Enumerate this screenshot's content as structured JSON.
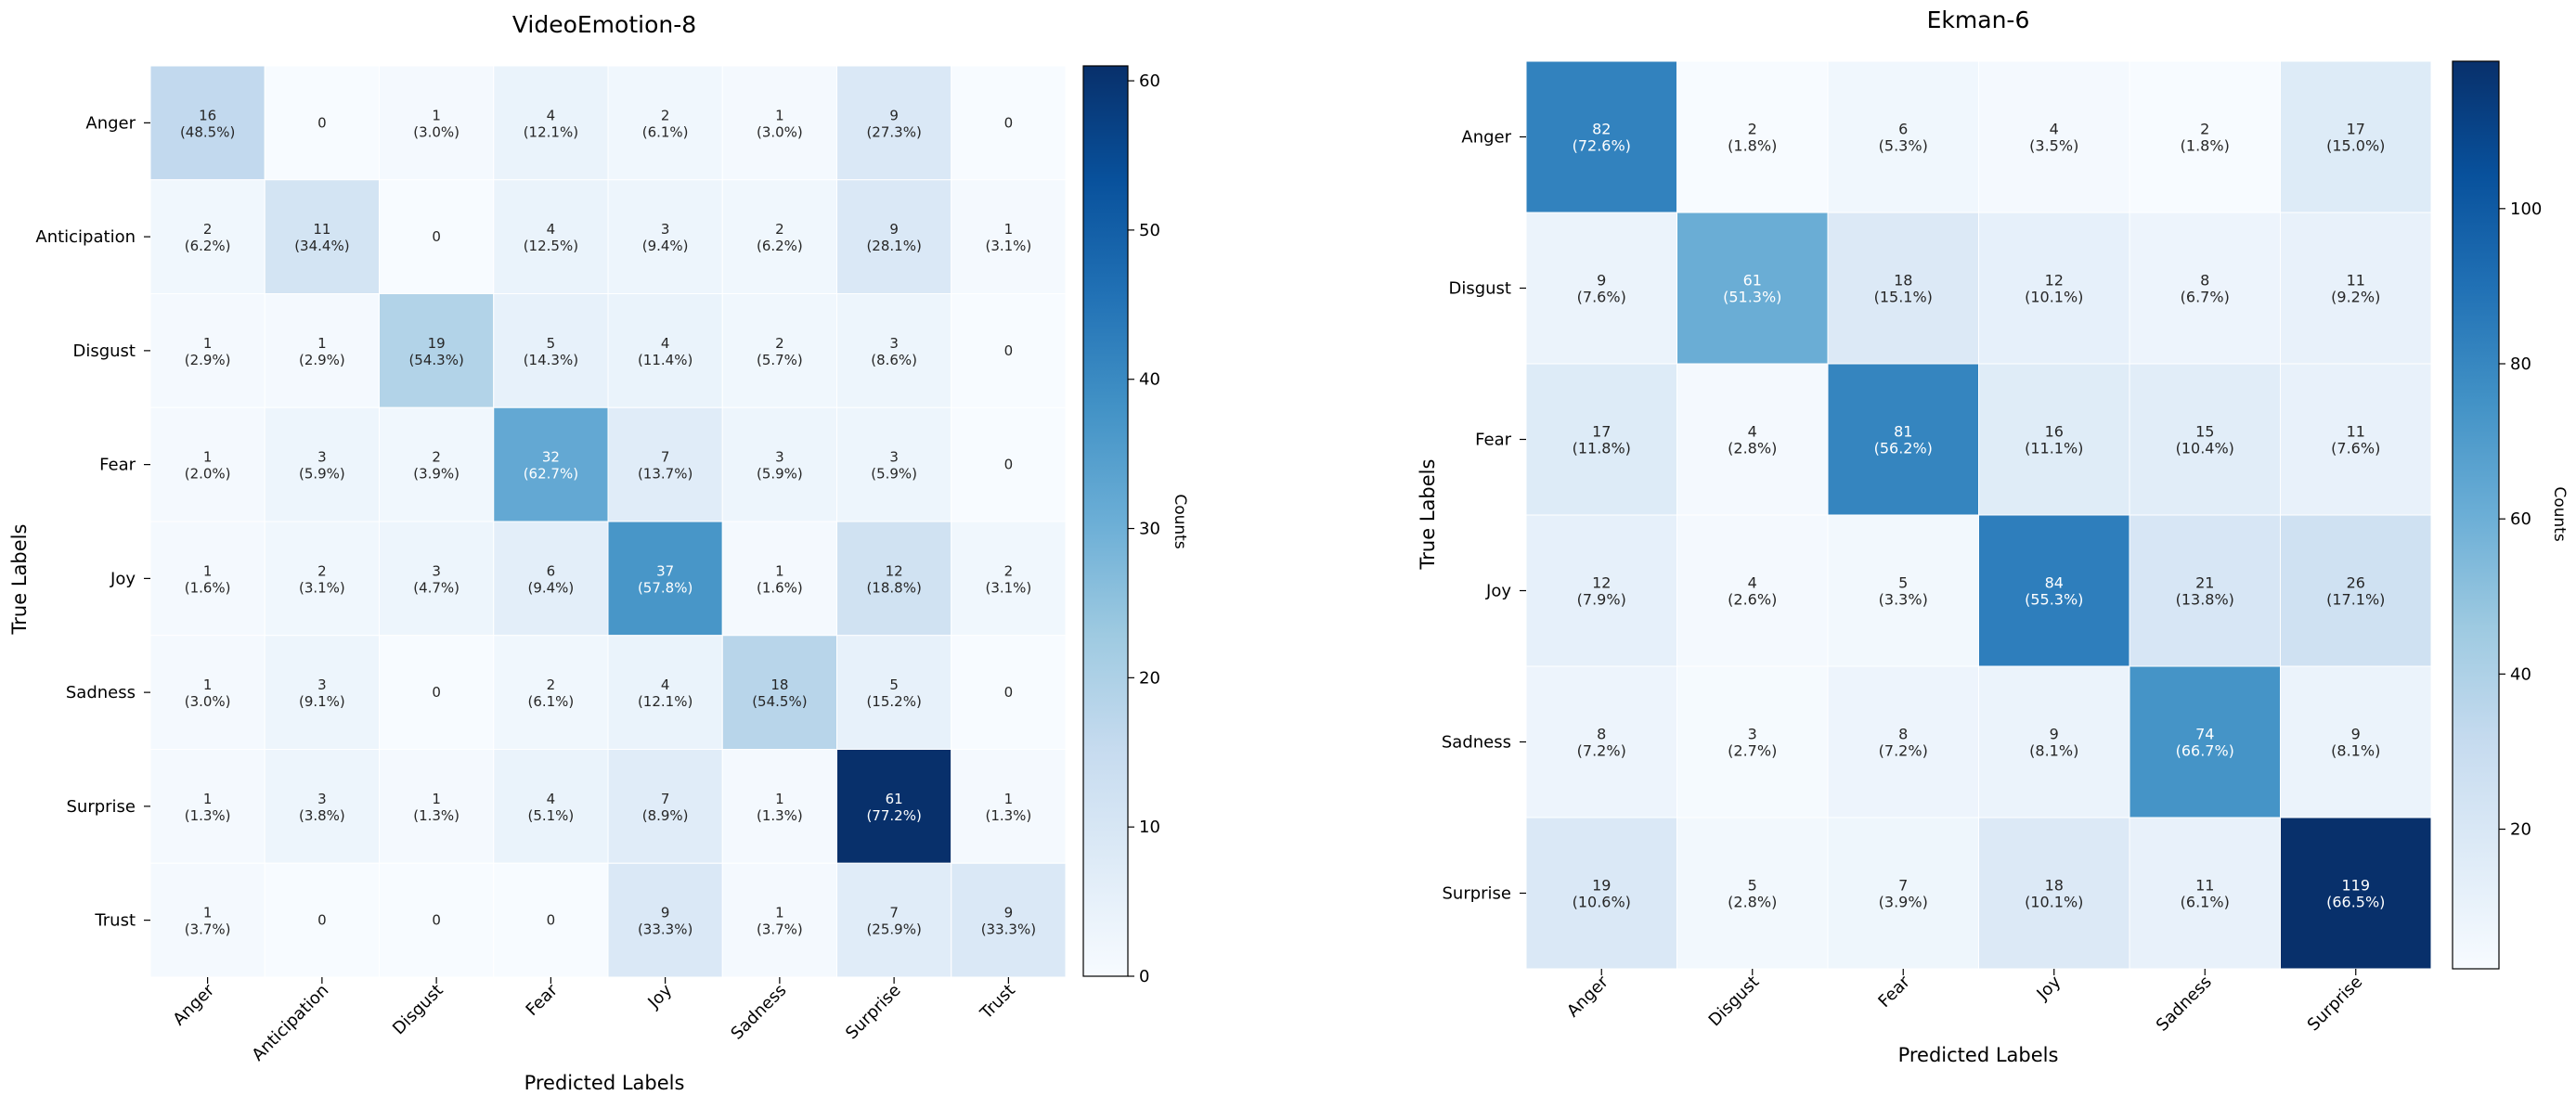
{
  "chart_data": [
    {
      "type": "heatmap",
      "title": "VideoEmotion-8",
      "xlabel": "Predicted Labels",
      "ylabel": "True Labels",
      "colorbar_label": "Counts",
      "colorbar_range": [
        0,
        61
      ],
      "colorbar_ticks": [
        0,
        10,
        20,
        30,
        40,
        50,
        60
      ],
      "colorbar_tick_labels": [
        "0",
        "10",
        "20",
        "30",
        "40",
        "50",
        "60"
      ],
      "colormap": [
        "#f7fbff",
        "#deebf7",
        "#c6dbef",
        "#9ecae1",
        "#6baed6",
        "#4292c6",
        "#2171b5",
        "#08519c",
        "#08306b"
      ],
      "row_labels": [
        "Anger",
        "Anticipation",
        "Disgust",
        "Fear",
        "Joy",
        "Sadness",
        "Surprise",
        "Trust"
      ],
      "col_labels": [
        "Anger",
        "Anticipation",
        "Disgust",
        "Fear",
        "Joy",
        "Sadness",
        "Surprise",
        "Trust"
      ],
      "values": [
        [
          16,
          0,
          1,
          4,
          2,
          1,
          9,
          0
        ],
        [
          2,
          11,
          0,
          4,
          3,
          2,
          9,
          1
        ],
        [
          1,
          1,
          19,
          5,
          4,
          2,
          3,
          0
        ],
        [
          1,
          3,
          2,
          32,
          7,
          3,
          3,
          0
        ],
        [
          1,
          2,
          3,
          6,
          37,
          1,
          12,
          2
        ],
        [
          1,
          3,
          0,
          2,
          4,
          18,
          5,
          0
        ],
        [
          1,
          3,
          1,
          4,
          7,
          1,
          61,
          1
        ],
        [
          1,
          0,
          0,
          0,
          9,
          1,
          7,
          9
        ]
      ],
      "percents": [
        [
          "48.5%",
          "",
          "3.0%",
          "12.1%",
          "6.1%",
          "3.0%",
          "27.3%",
          ""
        ],
        [
          "6.2%",
          "34.4%",
          "",
          "12.5%",
          "9.4%",
          "6.2%",
          "28.1%",
          "3.1%"
        ],
        [
          "2.9%",
          "2.9%",
          "54.3%",
          "14.3%",
          "11.4%",
          "5.7%",
          "8.6%",
          ""
        ],
        [
          "2.0%",
          "5.9%",
          "3.9%",
          "62.7%",
          "13.7%",
          "5.9%",
          "5.9%",
          ""
        ],
        [
          "1.6%",
          "3.1%",
          "4.7%",
          "9.4%",
          "57.8%",
          "1.6%",
          "18.8%",
          "3.1%"
        ],
        [
          "3.0%",
          "9.1%",
          "",
          "6.1%",
          "12.1%",
          "54.5%",
          "15.2%",
          ""
        ],
        [
          "1.3%",
          "3.8%",
          "1.3%",
          "5.1%",
          "8.9%",
          "1.3%",
          "77.2%",
          "1.3%"
        ],
        [
          "3.7%",
          "",
          "",
          "",
          "33.3%",
          "3.7%",
          "25.9%",
          "33.3%"
        ]
      ]
    },
    {
      "type": "heatmap",
      "title": "Ekman-6",
      "xlabel": "Predicted Labels",
      "ylabel": "True Labels",
      "colorbar_label": "Counts",
      "colorbar_range": [
        2,
        119
      ],
      "colorbar_ticks": [
        20,
        40,
        60,
        80,
        100
      ],
      "colorbar_tick_labels": [
        "20",
        "40",
        "60",
        "80",
        "100"
      ],
      "colormap": [
        "#f7fbff",
        "#deebf7",
        "#c6dbef",
        "#9ecae1",
        "#6baed6",
        "#4292c6",
        "#2171b5",
        "#08519c",
        "#08306b"
      ],
      "row_labels": [
        "Anger",
        "Disgust",
        "Fear",
        "Joy",
        "Sadness",
        "Surprise"
      ],
      "col_labels": [
        "Anger",
        "Disgust",
        "Fear",
        "Joy",
        "Sadness",
        "Surprise"
      ],
      "values": [
        [
          82,
          2,
          6,
          4,
          2,
          17
        ],
        [
          9,
          61,
          18,
          12,
          8,
          11
        ],
        [
          17,
          4,
          81,
          16,
          15,
          11
        ],
        [
          12,
          4,
          5,
          84,
          21,
          26
        ],
        [
          8,
          3,
          8,
          9,
          74,
          9
        ],
        [
          19,
          5,
          7,
          18,
          11,
          119
        ]
      ],
      "percents": [
        [
          "72.6%",
          "1.8%",
          "5.3%",
          "3.5%",
          "1.8%",
          "15.0%"
        ],
        [
          "7.6%",
          "51.3%",
          "15.1%",
          "10.1%",
          "6.7%",
          "9.2%"
        ],
        [
          "11.8%",
          "2.8%",
          "56.2%",
          "11.1%",
          "10.4%",
          "7.6%"
        ],
        [
          "7.9%",
          "2.6%",
          "3.3%",
          "55.3%",
          "13.8%",
          "17.1%"
        ],
        [
          "7.2%",
          "2.7%",
          "7.2%",
          "8.1%",
          "66.7%",
          "8.1%"
        ],
        [
          "10.6%",
          "2.8%",
          "3.9%",
          "10.1%",
          "6.1%",
          "66.5%"
        ]
      ]
    }
  ]
}
